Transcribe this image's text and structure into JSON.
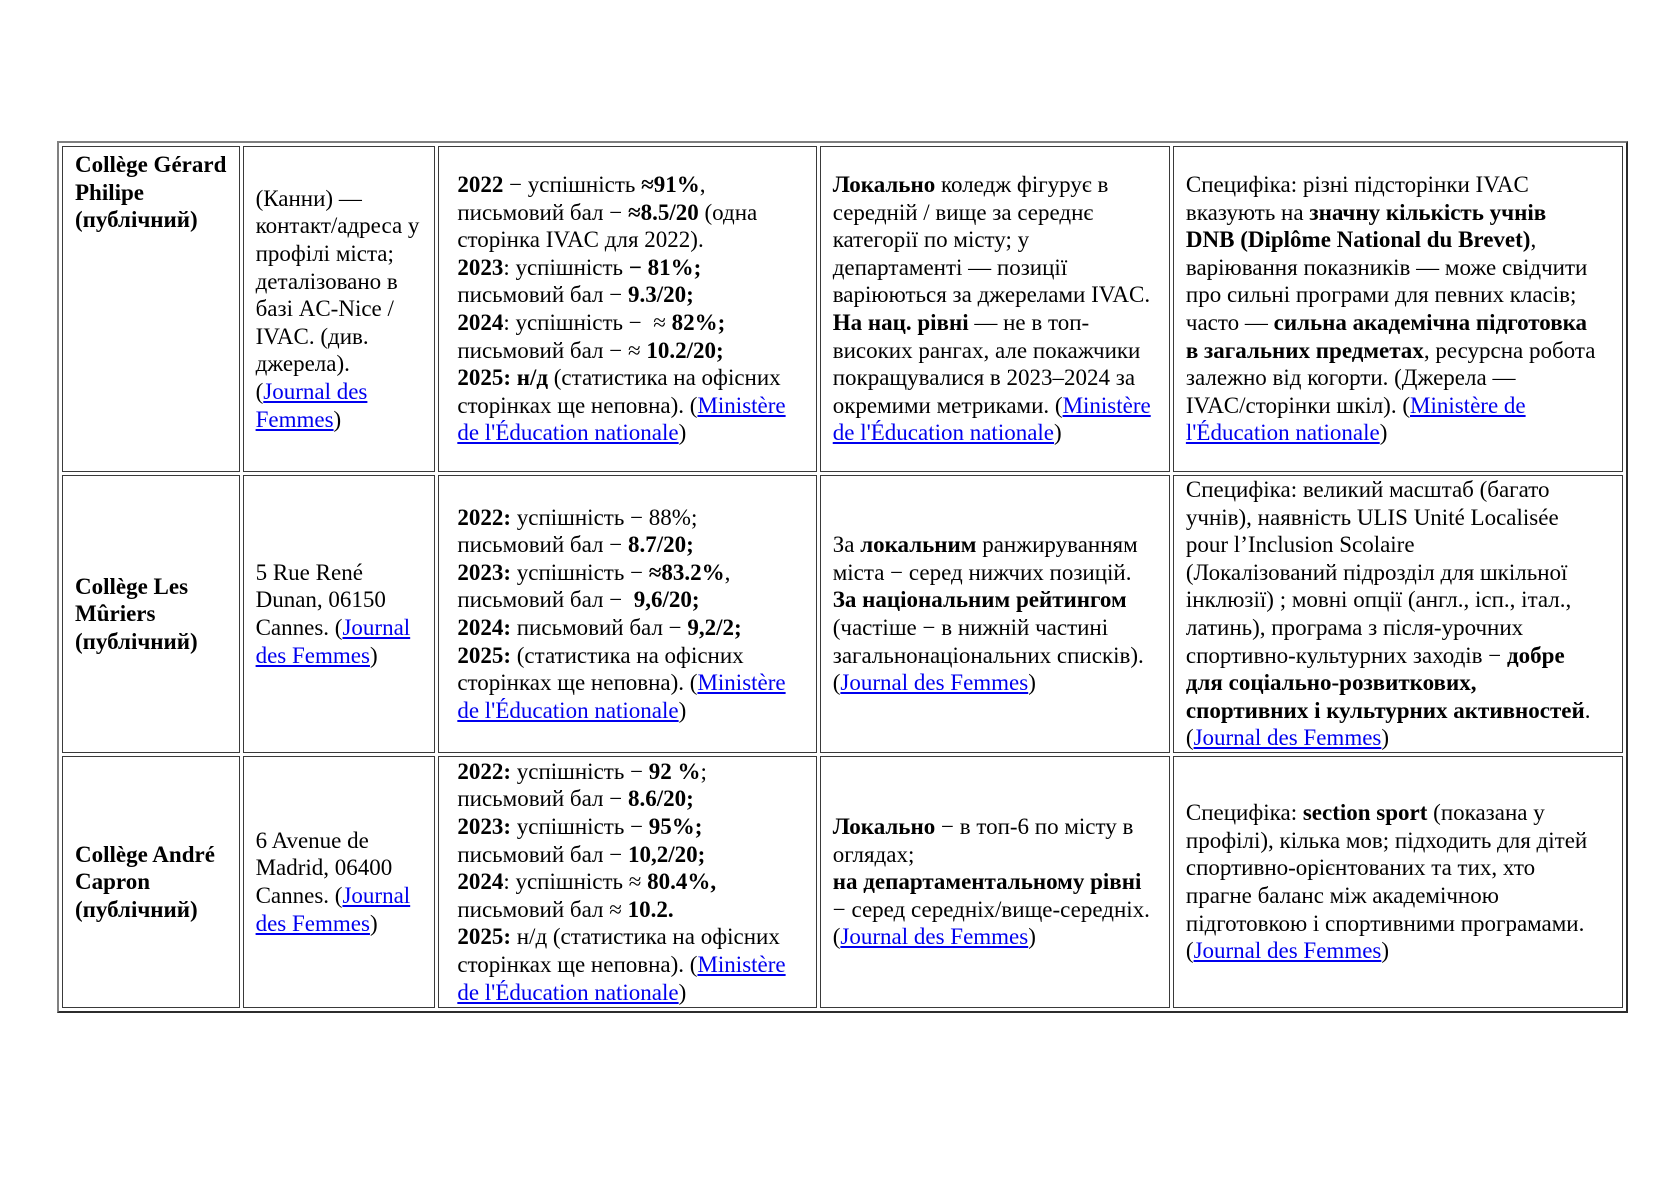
{
  "link_color": "#0000EE",
  "rows": [
    {
      "cells": [
        [
          [
            [
              "Collège Gérard",
              "b"
            ]
          ],
          [
            [
              "Philipe",
              "b"
            ]
          ],
          [
            [
              "(публічний)",
              "b"
            ]
          ]
        ],
        [
          [
            [
              "(Канни) —",
              ""
            ]
          ],
          [
            [
              "контакт/адреса у",
              ""
            ]
          ],
          [
            [
              "профілі міста;",
              ""
            ]
          ],
          [
            [
              "деталізовано в",
              ""
            ]
          ],
          [
            [
              "базі AC-Nice /",
              ""
            ]
          ],
          [
            [
              "IVAC. (див.",
              ""
            ]
          ],
          [
            [
              "джерела).",
              ""
            ]
          ],
          [
            [
              "(",
              ""
            ],
            [
              "Journal des",
              "a"
            ]
          ],
          [
            [
              "Femmes",
              "a"
            ],
            [
              ")",
              ""
            ]
          ]
        ],
        [
          [
            [
              "2022",
              "b"
            ],
            [
              " − успішність ",
              ""
            ],
            [
              "≈91%",
              "b"
            ],
            [
              ",",
              ""
            ]
          ],
          [
            [
              "письмовий бал − ",
              ""
            ],
            [
              "≈8.5/20",
              "b"
            ],
            [
              " (одна",
              ""
            ]
          ],
          [
            [
              "сторінка IVAC для 2022).",
              ""
            ]
          ],
          [
            [
              "2023",
              "b"
            ],
            [
              ": успішність ",
              ""
            ],
            [
              "− 81%;",
              "b"
            ]
          ],
          [
            [
              "письмовий бал − ",
              ""
            ],
            [
              "9.3/20;",
              "b"
            ]
          ],
          [
            [
              "2024",
              "b"
            ],
            [
              ": успішність −  ≈ ",
              ""
            ],
            [
              "82%;",
              "b"
            ]
          ],
          [
            [
              "письмовий бал − ≈ ",
              ""
            ],
            [
              "10.2/20;",
              "b"
            ]
          ],
          [
            [
              "2025: н/д",
              "b"
            ],
            [
              " (статистика на офісних",
              ""
            ]
          ],
          [
            [
              "сторінках ще неповна). (",
              ""
            ],
            [
              "Ministère",
              "a"
            ]
          ],
          [
            [
              "de l'Éducation nationale",
              "a"
            ],
            [
              ")",
              ""
            ]
          ]
        ],
        [
          [
            [
              "Локально",
              "b"
            ],
            [
              " коледж фігурує в",
              ""
            ]
          ],
          [
            [
              "середній / вище за середнє",
              ""
            ]
          ],
          [
            [
              "категорії по місту; у",
              ""
            ]
          ],
          [
            [
              "департаменті — позиції",
              ""
            ]
          ],
          [
            [
              "варіюються за джерелами IVAC.",
              ""
            ]
          ],
          [
            [
              "На нац. рівні",
              "b"
            ],
            [
              " — не в топ-",
              ""
            ]
          ],
          [
            [
              "високих рангах, але покажчики",
              ""
            ]
          ],
          [
            [
              "покращувалися в 2023–2024 за",
              ""
            ]
          ],
          [
            [
              "окремими метриками. (",
              ""
            ],
            [
              "Ministère",
              "a"
            ]
          ],
          [
            [
              "de l'Éducation nationale",
              "a"
            ],
            [
              ")",
              ""
            ]
          ]
        ],
        [
          [
            [
              "Специфіка: різні підсторінки IVAC",
              ""
            ]
          ],
          [
            [
              "вказують на ",
              ""
            ],
            [
              "значну кількість учнів",
              "b"
            ]
          ],
          [
            [
              "DNB (Diplôme National du Brevet)",
              "b"
            ],
            [
              ",",
              ""
            ]
          ],
          [
            [
              "варіювання показників — може свідчити",
              ""
            ]
          ],
          [
            [
              "про сильні програми для певних класів;",
              ""
            ]
          ],
          [
            [
              "часто — ",
              ""
            ],
            [
              "сильна академічна підготовка",
              "b"
            ]
          ],
          [
            [
              "в загальних предметах",
              "b"
            ],
            [
              ", ресурсна робота",
              ""
            ]
          ],
          [
            [
              "залежно від когорти. (Джерела —",
              ""
            ]
          ],
          [
            [
              "IVAC/сторінки шкіл). (",
              ""
            ],
            [
              "Ministère de",
              "a"
            ]
          ],
          [
            [
              "l'Éducation nationale",
              "a"
            ],
            [
              ")",
              ""
            ]
          ]
        ]
      ]
    },
    {
      "cells": [
        [
          [
            [
              "Collège Les",
              "b"
            ]
          ],
          [
            [
              "Mûriers",
              "b"
            ]
          ],
          [
            [
              "(публічний)",
              "b"
            ]
          ]
        ],
        [
          [
            [
              "5 Rue René",
              ""
            ]
          ],
          [
            [
              "Dunan, 06150",
              ""
            ]
          ],
          [
            [
              "Cannes. (",
              ""
            ],
            [
              "Journal",
              "a"
            ]
          ],
          [
            [
              "des Femmes",
              "a"
            ],
            [
              ")",
              ""
            ]
          ]
        ],
        [
          [
            [
              "2022:",
              "b"
            ],
            [
              " успішність − 88%;",
              ""
            ]
          ],
          [
            [
              "письмовий бал − ",
              ""
            ],
            [
              "8.7/20;",
              "b"
            ]
          ],
          [
            [
              "2023:",
              "b"
            ],
            [
              " успішність − ",
              ""
            ],
            [
              "≈83.2%",
              "b"
            ],
            [
              ",",
              ""
            ]
          ],
          [
            [
              "письмовий бал −  ",
              ""
            ],
            [
              "9,6/20;",
              "b"
            ]
          ],
          [
            [
              "2024:",
              "b"
            ],
            [
              " письмовий бал − ",
              ""
            ],
            [
              "9,2/2;",
              "b"
            ]
          ],
          [
            [
              "2025:",
              "b"
            ],
            [
              " (статистика на офісних",
              ""
            ]
          ],
          [
            [
              "сторінках ще неповна). (",
              ""
            ],
            [
              "Ministère",
              "a"
            ]
          ],
          [
            [
              "de l'Éducation nationale",
              "a"
            ],
            [
              ")",
              ""
            ]
          ]
        ],
        [
          [
            [
              "За ",
              ""
            ],
            [
              "локальним",
              "b"
            ],
            [
              " ранжируванням",
              ""
            ]
          ],
          [
            [
              "міста − серед нижчих позицій.",
              ""
            ]
          ],
          [
            [
              "За національним рейтингом",
              "b"
            ]
          ],
          [
            [
              "(частіше − в нижній частині",
              ""
            ]
          ],
          [
            [
              "загальнонаціональних списків).",
              ""
            ]
          ],
          [
            [
              "(",
              ""
            ],
            [
              "Journal des Femmes",
              "a"
            ],
            [
              ")",
              ""
            ]
          ]
        ],
        [
          [
            [
              "Специфіка: великий масштаб (багато",
              ""
            ]
          ],
          [
            [
              "учнів), наявність ULIS Unité Localisée",
              ""
            ]
          ],
          [
            [
              "pour l’Inclusion Scolaire",
              ""
            ]
          ],
          [
            [
              "(Локалізований підрозділ для шкільної",
              ""
            ]
          ],
          [
            [
              "інклюзії) ; мовні опції (англ., ісп., італ.,",
              ""
            ]
          ],
          [
            [
              "латинь), програма з після-урочних",
              ""
            ]
          ],
          [
            [
              "спортивно-культурних заходів − ",
              ""
            ],
            [
              "добре",
              "b"
            ]
          ],
          [
            [
              "для соціально-розвиткових,",
              "b"
            ]
          ],
          [
            [
              "спортивних і культурних активностей",
              "b"
            ],
            [
              ".",
              ""
            ]
          ],
          [
            [
              "(",
              ""
            ],
            [
              "Journal des Femmes",
              "a"
            ],
            [
              ")",
              ""
            ]
          ]
        ]
      ]
    },
    {
      "cells": [
        [
          [
            [
              "Collège André",
              "b"
            ]
          ],
          [
            [
              "Capron",
              "b"
            ]
          ],
          [
            [
              "(публічний)",
              "b"
            ]
          ]
        ],
        [
          [
            [
              "6 Avenue de",
              ""
            ]
          ],
          [
            [
              "Madrid, 06400",
              ""
            ]
          ],
          [
            [
              "Cannes. (",
              ""
            ],
            [
              "Journal",
              "a"
            ]
          ],
          [
            [
              "des Femmes",
              "a"
            ],
            [
              ")",
              ""
            ]
          ]
        ],
        [
          [
            [
              "2022:",
              "b"
            ],
            [
              " успішність − ",
              ""
            ],
            [
              "92 %",
              "b"
            ],
            [
              ";",
              ""
            ]
          ],
          [
            [
              "письмовий бал − ",
              ""
            ],
            [
              "8.6/20;",
              "b"
            ]
          ],
          [
            [
              "2023:",
              "b"
            ],
            [
              " успішність − ",
              ""
            ],
            [
              "95%;",
              "b"
            ]
          ],
          [
            [
              "письмовий бал − ",
              ""
            ],
            [
              "10,2/20;",
              "b"
            ]
          ],
          [
            [
              "2024",
              "b"
            ],
            [
              ": успішність ≈ ",
              ""
            ],
            [
              "80.4%,",
              "b"
            ]
          ],
          [
            [
              "письмовий бал ≈ ",
              ""
            ],
            [
              "10.2.",
              "b"
            ]
          ],
          [
            [
              "2025:",
              "b"
            ],
            [
              " н/д (статистика на офісних",
              ""
            ]
          ],
          [
            [
              "сторінках ще неповна). (",
              ""
            ],
            [
              "Ministère",
              "a"
            ]
          ],
          [
            [
              "de l'Éducation nationale",
              "a"
            ],
            [
              ")",
              ""
            ]
          ]
        ],
        [
          [
            [
              "Локально",
              "b"
            ],
            [
              " − в топ-6 по місту в",
              ""
            ]
          ],
          [
            [
              "оглядах;",
              ""
            ]
          ],
          [
            [
              "на департаментальному рівні",
              "b"
            ]
          ],
          [
            [
              "− серед середніх/вище-середніх.",
              ""
            ]
          ],
          [
            [
              "(",
              ""
            ],
            [
              "Journal des Femmes",
              "a"
            ],
            [
              ")",
              ""
            ]
          ]
        ],
        [
          [
            [
              "Специфіка: ",
              ""
            ],
            [
              "section sport",
              "b"
            ],
            [
              " (показана у",
              ""
            ]
          ],
          [
            [
              "профілі), кілька мов; підходить для дітей",
              ""
            ]
          ],
          [
            [
              "спортивно-орієнтованих та тих, хто",
              ""
            ]
          ],
          [
            [
              "прагне баланс між академічною",
              ""
            ]
          ],
          [
            [
              "підготовкою і спортивними програмами.",
              ""
            ]
          ],
          [
            [
              "(",
              ""
            ],
            [
              "Journal des Femmes",
              "a"
            ],
            [
              ")",
              ""
            ]
          ]
        ]
      ]
    }
  ]
}
